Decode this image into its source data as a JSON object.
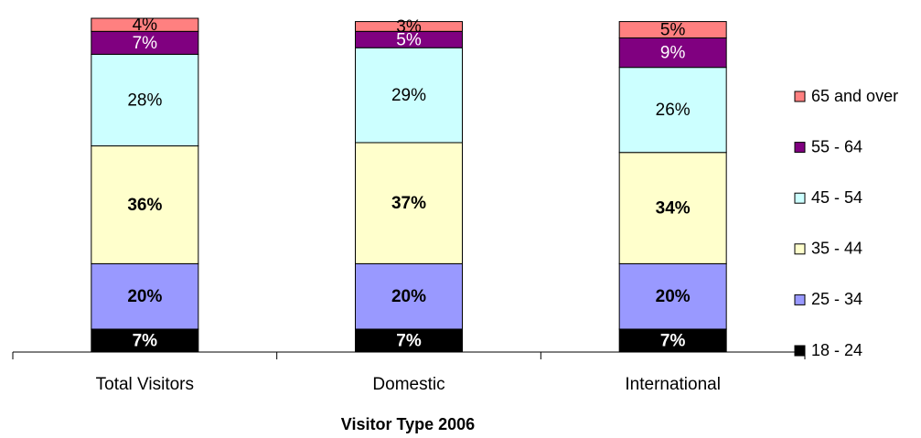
{
  "chart_data": {
    "type": "stacked_bar",
    "xlabel": "Visitor Type 2006",
    "categories": [
      "Total Visitors",
      "Domestic",
      "International"
    ],
    "ylim": [
      0,
      102
    ],
    "legend": "right",
    "series": [
      {
        "name": "18 - 24",
        "color": "#000000",
        "bold_labels": true,
        "values": [
          7,
          7,
          7
        ],
        "value_labels": [
          "7%",
          "7%",
          "7%"
        ]
      },
      {
        "name": "25 - 34",
        "color": "#9999ff",
        "bold_labels": true,
        "values": [
          20,
          20,
          20
        ],
        "value_labels": [
          "20%",
          "20%",
          "20%"
        ]
      },
      {
        "name": "35 - 44",
        "color": "#ffffcc",
        "bold_labels": true,
        "values": [
          36,
          37,
          34
        ],
        "value_labels": [
          "36%",
          "37%",
          "34%"
        ]
      },
      {
        "name": "45 - 54",
        "color": "#ccffff",
        "bold_labels": false,
        "values": [
          28,
          29,
          26
        ],
        "value_labels": [
          "28%",
          "29%",
          "26%"
        ]
      },
      {
        "name": "55 - 64",
        "color": "#800080",
        "bold_labels": false,
        "values": [
          7,
          5,
          9
        ],
        "value_labels": [
          "7%",
          "5%",
          "9%"
        ]
      },
      {
        "name": "65 and over",
        "color": "#ff8080",
        "bold_labels": false,
        "values": [
          4,
          3,
          5
        ],
        "value_labels": [
          "4%",
          "3%",
          "5%"
        ]
      }
    ]
  }
}
